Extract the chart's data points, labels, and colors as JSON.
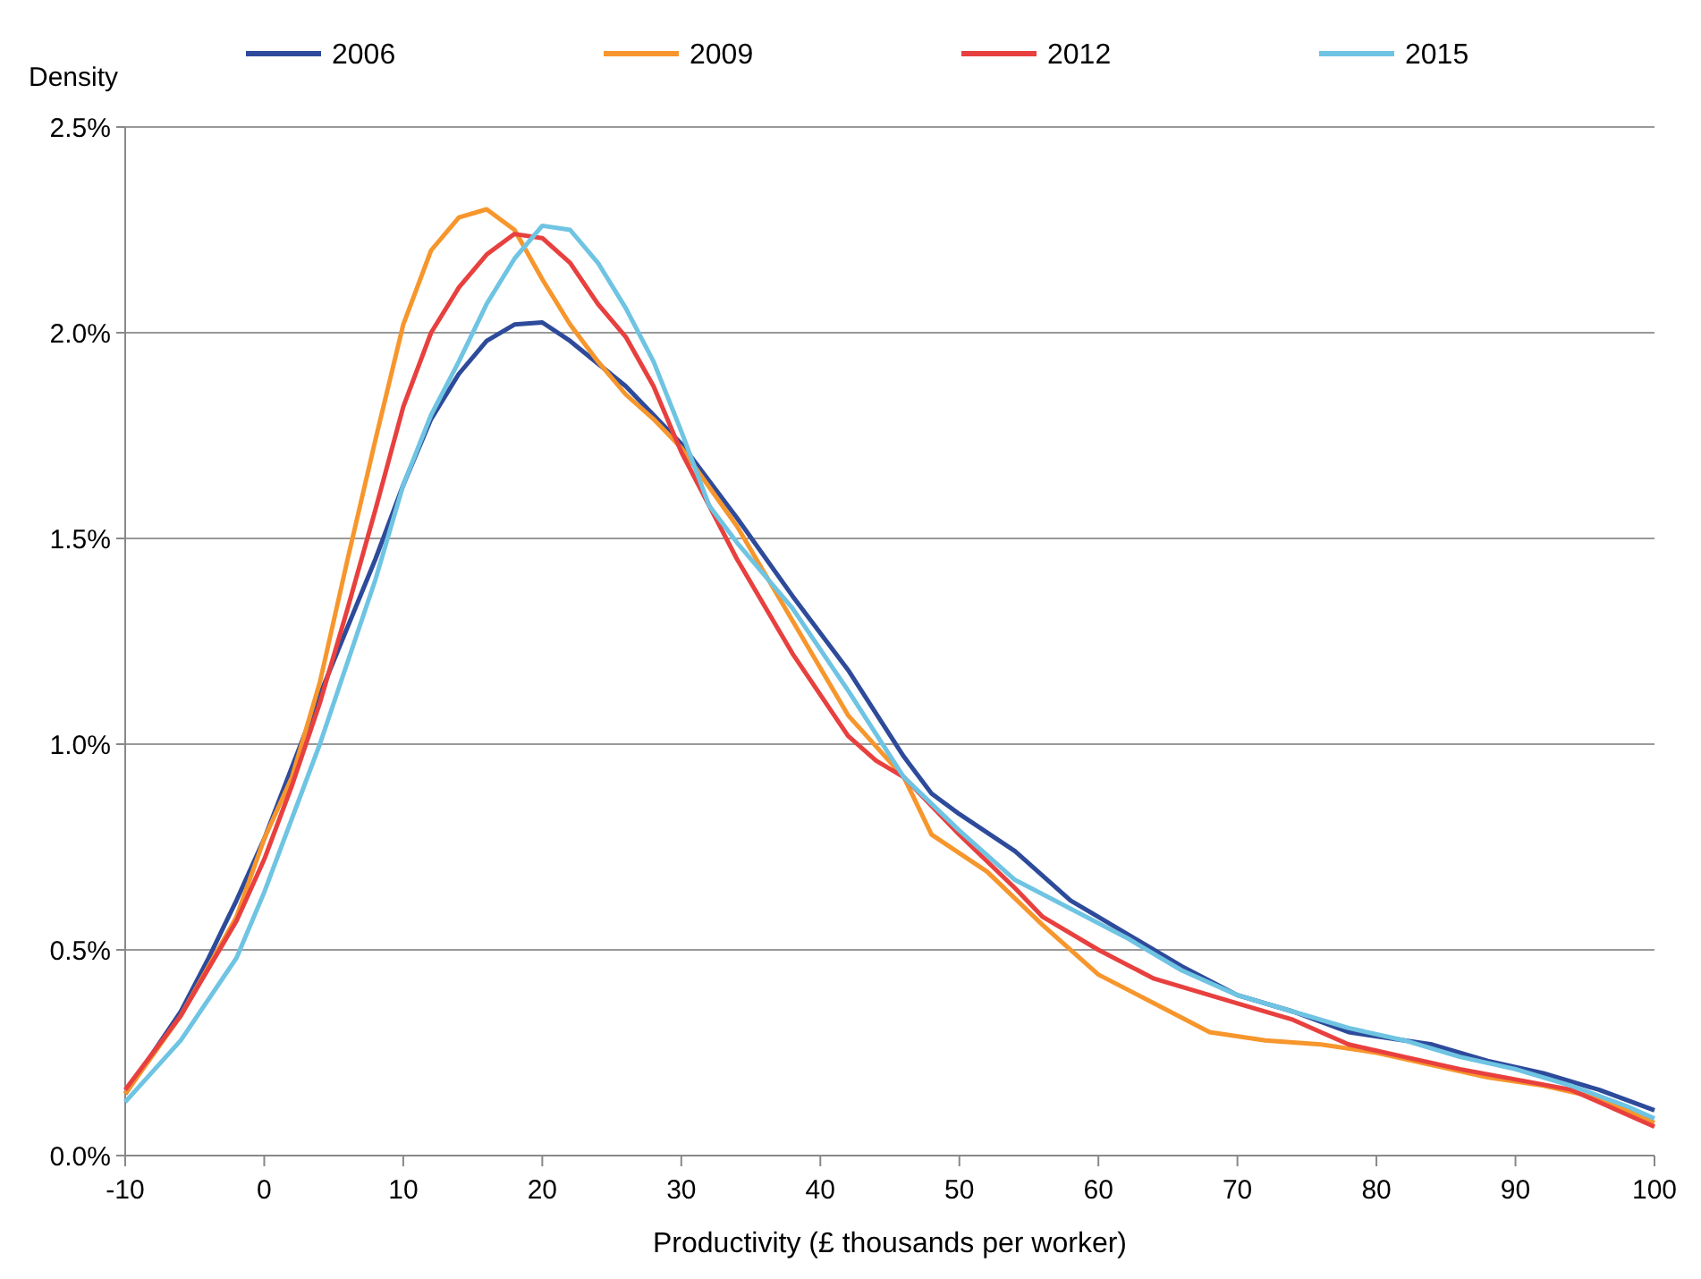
{
  "chart_data": {
    "type": "line",
    "xlabel": "Productivity (£ thousands  per worker)",
    "ylabel": "Density",
    "xlim": [
      -10,
      100
    ],
    "xticks": [
      -10,
      0,
      10,
      20,
      30,
      40,
      50,
      60,
      70,
      80,
      90,
      100
    ],
    "ylim": [
      0,
      2.5
    ],
    "yticks": [
      {
        "value": 0,
        "label": "0.0%"
      },
      {
        "value": 0.5,
        "label": "0.5%"
      },
      {
        "value": 1,
        "label": "1.0%"
      },
      {
        "value": 1.5,
        "label": "1.5%"
      },
      {
        "value": 2,
        "label": "2.0%"
      },
      {
        "value": 2.5,
        "label": "2.5%"
      }
    ],
    "grid": "y",
    "legend": "top",
    "marker": "none",
    "line_style": "solid",
    "series": [
      {
        "name": "2006",
        "color": "#2e4a9a",
        "x": [
          -10,
          -6,
          -4,
          -2,
          0,
          4,
          8,
          10,
          12,
          14,
          16,
          18,
          20,
          22,
          26,
          30,
          34,
          38,
          42,
          46,
          48,
          50,
          54,
          58,
          62,
          66,
          70,
          74,
          78,
          82,
          84,
          88,
          92,
          96,
          100
        ],
        "values": [
          0.15,
          0.35,
          0.48,
          0.62,
          0.77,
          1.12,
          1.45,
          1.63,
          1.79,
          1.9,
          1.98,
          2.02,
          2.025,
          1.98,
          1.87,
          1.73,
          1.55,
          1.36,
          1.18,
          0.97,
          0.88,
          0.83,
          0.74,
          0.62,
          0.54,
          0.46,
          0.39,
          0.35,
          0.3,
          0.28,
          0.27,
          0.23,
          0.2,
          0.16,
          0.11
        ]
      },
      {
        "name": "2009",
        "color": "#f7962c",
        "x": [
          -10,
          -6,
          -2,
          0,
          2,
          4,
          6,
          8,
          10,
          12,
          14,
          16,
          18,
          20,
          22,
          24,
          26,
          28,
          30,
          34,
          38,
          42,
          46,
          48,
          52,
          56,
          60,
          64,
          68,
          72,
          76,
          80,
          84,
          88,
          92,
          96,
          100
        ],
        "values": [
          0.15,
          0.34,
          0.58,
          0.77,
          0.92,
          1.15,
          1.45,
          1.74,
          2.02,
          2.2,
          2.28,
          2.3,
          2.25,
          2.13,
          2.02,
          1.93,
          1.85,
          1.79,
          1.72,
          1.53,
          1.3,
          1.07,
          0.92,
          0.78,
          0.69,
          0.56,
          0.44,
          0.37,
          0.3,
          0.28,
          0.27,
          0.25,
          0.22,
          0.19,
          0.17,
          0.14,
          0.08
        ]
      },
      {
        "name": "2012",
        "color": "#e8403e",
        "x": [
          -10,
          -6,
          -2,
          0,
          2,
          4,
          6,
          8,
          10,
          12,
          14,
          16,
          18,
          20,
          22,
          24,
          26,
          28,
          30,
          34,
          38,
          42,
          44,
          46,
          50,
          54,
          56,
          60,
          64,
          70,
          74,
          78,
          82,
          86,
          90,
          94,
          98,
          100
        ],
        "values": [
          0.16,
          0.34,
          0.57,
          0.72,
          0.9,
          1.1,
          1.33,
          1.57,
          1.82,
          2.0,
          2.11,
          2.19,
          2.24,
          2.23,
          2.17,
          2.07,
          1.99,
          1.87,
          1.71,
          1.45,
          1.22,
          1.02,
          0.96,
          0.92,
          0.78,
          0.65,
          0.58,
          0.5,
          0.43,
          0.37,
          0.33,
          0.27,
          0.24,
          0.21,
          0.185,
          0.16,
          0.1,
          0.07
        ]
      },
      {
        "name": "2015",
        "color": "#6ec4e2",
        "x": [
          -10,
          -6,
          -2,
          0,
          4,
          8,
          10,
          12,
          14,
          16,
          18,
          20,
          22,
          24,
          26,
          28,
          30,
          32,
          34,
          38,
          42,
          46,
          50,
          54,
          58,
          62,
          66,
          70,
          74,
          78,
          82,
          86,
          90,
          94,
          98,
          100
        ],
        "values": [
          0.13,
          0.28,
          0.48,
          0.64,
          1.0,
          1.4,
          1.63,
          1.8,
          1.93,
          2.07,
          2.18,
          2.26,
          2.25,
          2.17,
          2.06,
          1.93,
          1.76,
          1.58,
          1.49,
          1.33,
          1.13,
          0.92,
          0.79,
          0.67,
          0.6,
          0.53,
          0.45,
          0.39,
          0.35,
          0.31,
          0.28,
          0.24,
          0.21,
          0.17,
          0.12,
          0.09
        ]
      }
    ]
  }
}
